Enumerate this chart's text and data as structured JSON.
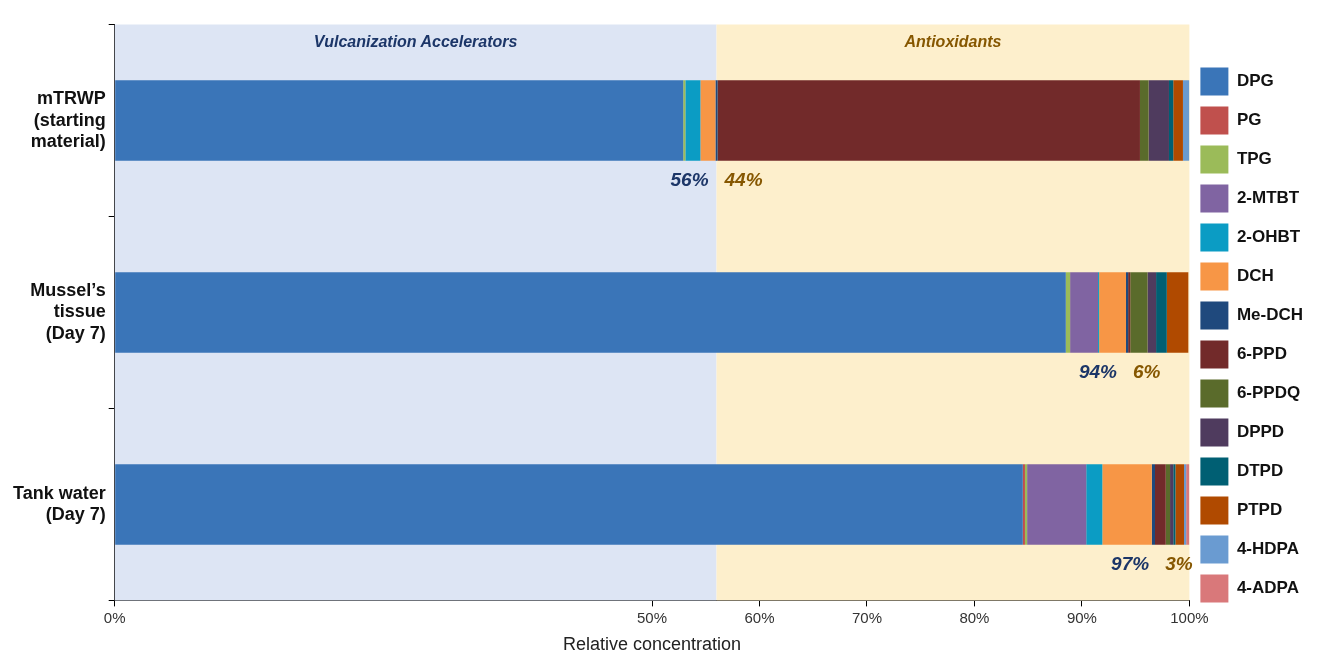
{
  "chart_data": {
    "type": "bar",
    "orientation": "horizontal",
    "stacked": true,
    "xlabel": "Relative concentration",
    "categories": [
      "mTRWP (starting material)",
      "Mussel’s tissue (Day 7)",
      "Tank water (Day 7)"
    ],
    "series": [
      {
        "name": "DPG",
        "color": "#3a75b8",
        "values": [
          52.9,
          88.5,
          84.5
        ]
      },
      {
        "name": "PG",
        "color": "#c0504d",
        "values": [
          0,
          0,
          0.2
        ]
      },
      {
        "name": "TPG",
        "color": "#9bbb59",
        "values": [
          0.2,
          0.4,
          0.2
        ]
      },
      {
        "name": "2-MTBT",
        "color": "#8064a2",
        "values": [
          0,
          2.6,
          5.5
        ]
      },
      {
        "name": "2-OHBT",
        "color": "#0b9cc4",
        "values": [
          1.4,
          0.1,
          1.5
        ]
      },
      {
        "name": "DCH",
        "color": "#f79646",
        "values": [
          1.4,
          2.5,
          4.6
        ]
      },
      {
        "name": "Me-DCH",
        "color": "#1f497d",
        "values": [
          0.2,
          0.2,
          0.3
        ]
      },
      {
        "name": "6-PPD",
        "color": "#722a2a",
        "values": [
          39.3,
          0.2,
          1.0
        ]
      },
      {
        "name": "6-PPDQ",
        "color": "#5a6b2b",
        "values": [
          0.8,
          1.6,
          0.4
        ]
      },
      {
        "name": "DPPD",
        "color": "#4f3b5e",
        "values": [
          1.9,
          0.8,
          0.3
        ]
      },
      {
        "name": "DTPD",
        "color": "#005f73",
        "values": [
          0.4,
          1.0,
          0.2
        ]
      },
      {
        "name": "PTPD",
        "color": "#b04a00",
        "values": [
          0.9,
          2.0,
          0.8
        ]
      },
      {
        "name": "4-HDPA",
        "color": "#6a9bd1",
        "values": [
          0.6,
          null,
          0.2
        ]
      },
      {
        "name": "4-ADPA",
        "color": "#d9787a",
        "values": [
          0,
          0,
          0.3
        ]
      }
    ],
    "xlim": [
      0,
      100
    ],
    "xticks": [
      {
        "value": 0,
        "label": "0%"
      },
      {
        "value": 50,
        "label": "50%"
      },
      {
        "value": 60,
        "label": "60%"
      },
      {
        "value": 70,
        "label": "70%"
      },
      {
        "value": 80,
        "label": "80%"
      },
      {
        "value": 90,
        "label": "90%"
      },
      {
        "value": 100,
        "label": "100%"
      }
    ],
    "bands": [
      {
        "axis": "x",
        "from": 0,
        "to": 56,
        "label": "Vulcanization Accelerators",
        "color": "#dde5f4"
      },
      {
        "axis": "x",
        "from": 56,
        "to": 100,
        "label": "Antioxidants",
        "color": "#fdefcc"
      }
    ],
    "annotations": [
      {
        "text": "56%",
        "x": 56,
        "y": "mTRWP (starting material)"
      },
      {
        "text": "44%",
        "x": 56,
        "y": "mTRWP (starting material)"
      },
      {
        "text": "94%",
        "x": 94,
        "y": "Mussel’s tissue (Day 7)"
      },
      {
        "text": "6%",
        "x": 94,
        "y": "Mussel’s tissue (Day 7)"
      },
      {
        "text": "97%",
        "x": 97,
        "y": "Tank water (Day 7)"
      },
      {
        "text": "3%",
        "x": 97,
        "y": "Tank water (Day 7)"
      }
    ],
    "grid": false,
    "legend": "right"
  }
}
